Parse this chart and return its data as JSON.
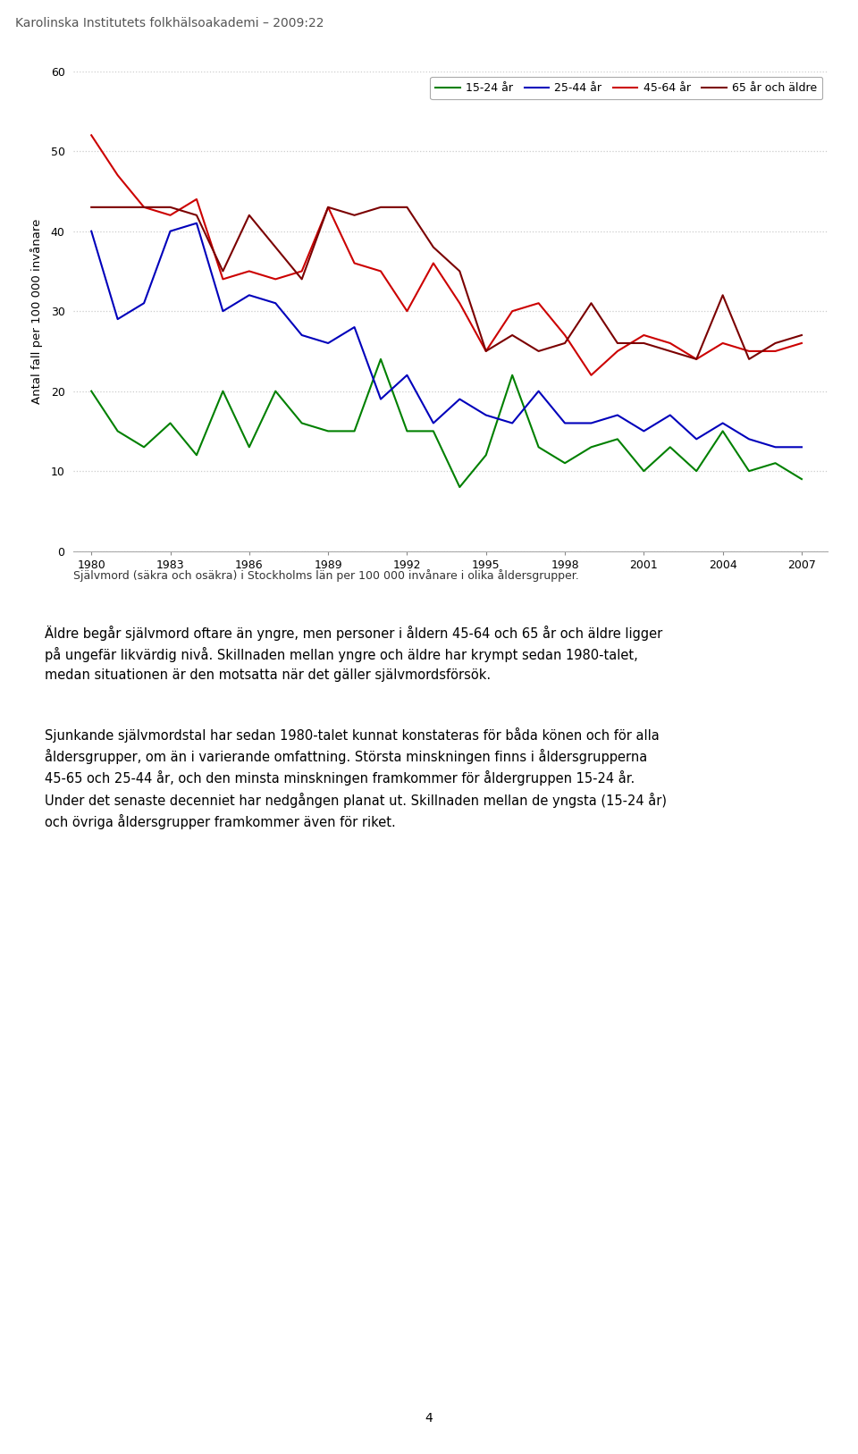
{
  "title_header": "Karolinska Institutets folkhälsoakademi – 2009:22",
  "ylabel": "Antal fall per 100 000 invånare",
  "caption": "Självmord (säkra och osäkra) i Stockholms län per 100 000 invånare i olika åldersgrupper.",
  "years": [
    1980,
    1981,
    1982,
    1983,
    1984,
    1985,
    1986,
    1987,
    1988,
    1989,
    1990,
    1991,
    1992,
    1993,
    1994,
    1995,
    1996,
    1997,
    1998,
    1999,
    2000,
    2001,
    2002,
    2003,
    2004,
    2005,
    2006,
    2007
  ],
  "series_15_24": [
    20,
    15,
    13,
    16,
    12,
    20,
    13,
    20,
    16,
    15,
    15,
    24,
    15,
    15,
    8,
    12,
    22,
    13,
    11,
    13,
    14,
    10,
    13,
    10,
    15,
    10,
    11,
    9
  ],
  "series_25_44": [
    40,
    29,
    31,
    40,
    41,
    30,
    32,
    31,
    27,
    26,
    28,
    19,
    22,
    16,
    19,
    17,
    16,
    20,
    16,
    16,
    17,
    15,
    17,
    14,
    16,
    14,
    13,
    13
  ],
  "series_45_64": [
    52,
    47,
    43,
    42,
    44,
    34,
    35,
    34,
    35,
    43,
    36,
    35,
    30,
    36,
    31,
    25,
    30,
    31,
    27,
    22,
    25,
    27,
    26,
    24,
    26,
    25,
    25,
    26
  ],
  "series_65plus": [
    43,
    43,
    43,
    43,
    42,
    35,
    42,
    38,
    34,
    43,
    42,
    43,
    43,
    38,
    35,
    25,
    27,
    25,
    26,
    31,
    26,
    26,
    25,
    24,
    32,
    24,
    26,
    27
  ],
  "color_15_24": "#008000",
  "color_25_44": "#0000bb",
  "color_45_64": "#cc0000",
  "color_65plus": "#7b0000",
  "label_15_24": "15-24 år",
  "label_25_44": "25-44 år",
  "label_45_64": "45-64 år",
  "label_65plus": "65 år och äldre",
  "ylim": [
    0,
    60
  ],
  "yticks": [
    0,
    10,
    20,
    30,
    40,
    50,
    60
  ],
  "xticks": [
    1980,
    1983,
    1986,
    1989,
    1992,
    1995,
    1998,
    2001,
    2004,
    2007
  ],
  "grid_color": "#cccccc",
  "body_para1": [
    "Äldre begår självmord oftare än yngre, men personer i åldern 45-64 och 65 år och äldre ligger",
    "på ungefär likvärdig nivå. Skillnaden mellan yngre och äldre har krympt sedan 1980-talet,",
    "medan situationen är den motsatta när det gäller självmordsförsök."
  ],
  "body_para2": [
    "Sjunkande självmordstal har sedan 1980-talet kunnat konstateras för båda könen och för alla",
    "åldersgrupper, om än i varierande omfattning. Största minskningen finns i åldersgrupperna",
    "45-65 och 25-44 år, och den minsta minskningen framkommer för åldergruppen 15-24 år.",
    "Under det senaste decenniet har nedgången planat ut. Skillnaden mellan de yngsta (15-24 år)",
    "och övriga åldersgrupper framkommer även för riket."
  ],
  "page_number": "4"
}
